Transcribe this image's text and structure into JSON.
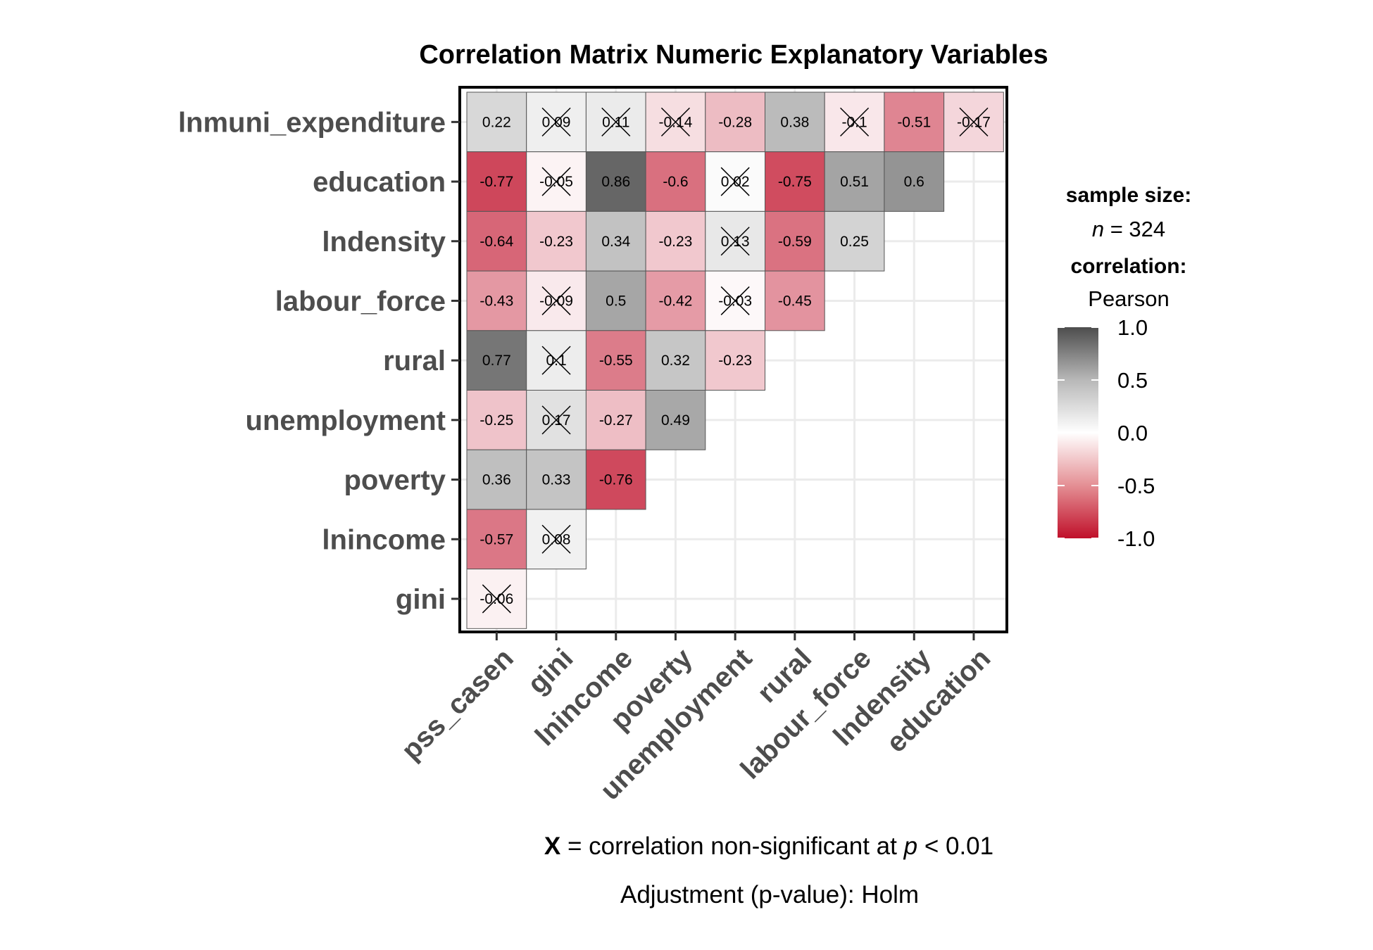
{
  "chart_data": {
    "type": "heatmap",
    "title": "Correlation Matrix Numeric Explanatory Variables",
    "columns": [
      "pss_casen",
      "gini",
      "lnincome",
      "poverty",
      "unemployment",
      "rural",
      "labour_force",
      "lndensity",
      "education"
    ],
    "rows": [
      "lnmuni_expenditure",
      "education",
      "lndensity",
      "labour_force",
      "rural",
      "unemployment",
      "poverty",
      "lnincome",
      "gini"
    ],
    "values": [
      [
        0.22,
        0.09,
        0.11,
        -0.14,
        -0.28,
        0.38,
        -0.1,
        -0.51,
        -0.17
      ],
      [
        -0.77,
        -0.05,
        0.86,
        -0.6,
        0.02,
        -0.75,
        0.51,
        0.6
      ],
      [
        -0.64,
        -0.23,
        0.34,
        -0.23,
        0.13,
        -0.59,
        0.25
      ],
      [
        -0.43,
        -0.09,
        0.5,
        -0.42,
        -0.03,
        -0.45
      ],
      [
        0.77,
        0.1,
        -0.55,
        0.32,
        -0.23
      ],
      [
        -0.25,
        0.17,
        -0.27,
        0.49
      ],
      [
        0.36,
        0.33,
        -0.76
      ],
      [
        -0.57,
        0.08
      ],
      [
        -0.06
      ]
    ],
    "labels": [
      [
        "0.22",
        "0.09",
        "0.11",
        "-0.14",
        "-0.28",
        "0.38",
        "-0.1",
        "-0.51",
        "-0.17"
      ],
      [
        "-0.77",
        "-0.05",
        "0.86",
        "-0.6",
        "0.02",
        "-0.75",
        "0.51",
        "0.6"
      ],
      [
        "-0.64",
        "-0.23",
        "0.34",
        "-0.23",
        "0.13",
        "-0.59",
        "0.25"
      ],
      [
        "-0.43",
        "-0.09",
        "0.5",
        "-0.42",
        "-0.03",
        "-0.45"
      ],
      [
        "0.77",
        "0.1",
        "-0.55",
        "0.32",
        "-0.23"
      ],
      [
        "-0.25",
        "0.17",
        "-0.27",
        "0.49"
      ],
      [
        "0.36",
        "0.33",
        "-0.76"
      ],
      [
        "-0.57",
        "0.08"
      ],
      [
        "-0.06"
      ]
    ],
    "nonsignificant": [
      [
        false,
        true,
        true,
        true,
        false,
        false,
        true,
        false,
        true
      ],
      [
        false,
        true,
        false,
        false,
        true,
        false,
        false,
        false
      ],
      [
        false,
        false,
        false,
        false,
        true,
        false,
        false
      ],
      [
        false,
        true,
        false,
        false,
        true,
        false
      ],
      [
        false,
        true,
        false,
        false,
        false
      ],
      [
        false,
        true,
        false,
        false
      ],
      [
        false,
        false,
        false
      ],
      [
        false,
        true
      ],
      [
        true
      ]
    ],
    "color_scale": {
      "min": -1.0,
      "mid": 0.0,
      "max": 1.0,
      "low_color": "#c0102a",
      "mid_color": "#ffffff",
      "high_color": "#4d4d4d"
    },
    "legend": {
      "sample_size_title": "sample size:",
      "sample_size_n": "n",
      "sample_size_value": "= 324",
      "correlation_title": "correlation:",
      "correlation_method": "Pearson",
      "ticks": [
        "1.0",
        "0.5",
        "0.0",
        "-0.5",
        "-1.0"
      ],
      "tick_values": [
        1.0,
        0.5,
        0.0,
        -0.5,
        -1.0
      ]
    },
    "caption": {
      "symbol": "X",
      "line1_a": " = correlation non-significant at ",
      "line1_p": "p",
      "line1_b": " < 0.01",
      "line2": "Adjustment (p-value): Holm"
    },
    "grid": true
  }
}
